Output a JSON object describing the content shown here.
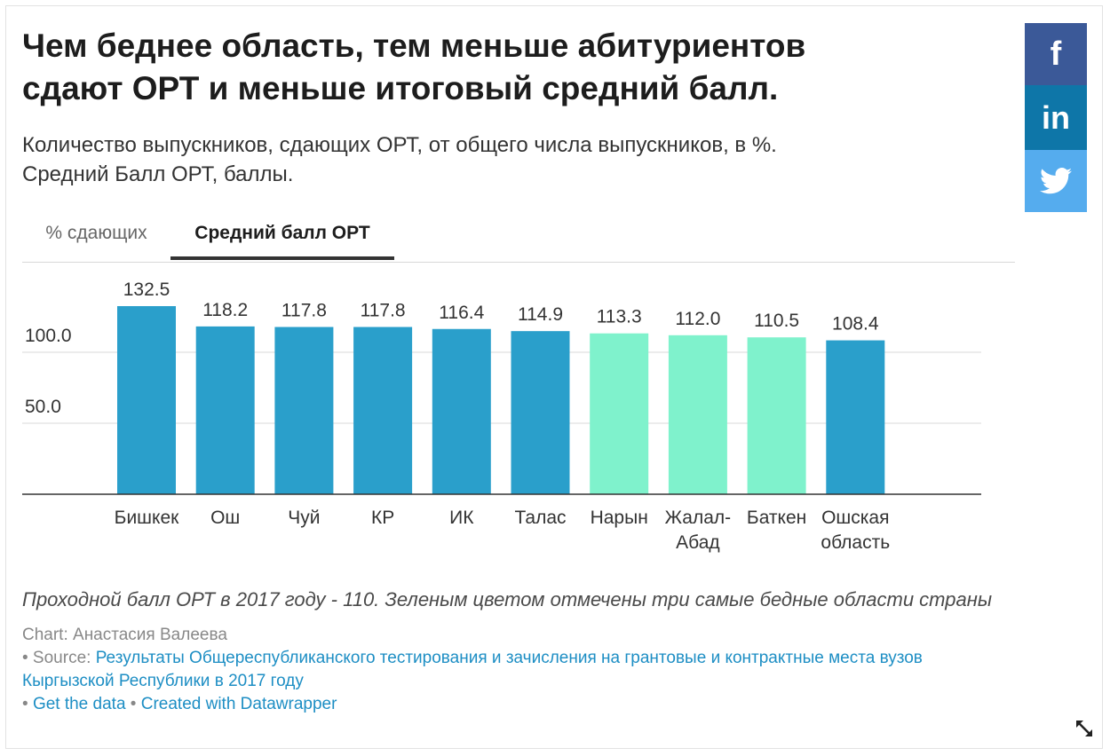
{
  "title_lines": [
    "Чем беднее область, тем меньше абитуриентов",
    "сдают ОРТ и меньше итоговый средний балл."
  ],
  "subtitle_lines": [
    "Количество выпускников, сдающих ОРТ, от общего числа выпускников, в %.",
    "Средний Балл ОРТ, баллы."
  ],
  "tabs": [
    {
      "label": "% сдающих",
      "active": false
    },
    {
      "label": "Средний балл ОРТ",
      "active": true
    }
  ],
  "social": {
    "icons": [
      "facebook-icon",
      "linkedin-icon",
      "twitter-icon"
    ],
    "fb_glyph": "f",
    "li_glyph": "in"
  },
  "chart_data": {
    "type": "bar",
    "categories": [
      [
        "Бишкек"
      ],
      [
        "Ош"
      ],
      [
        "Чуй"
      ],
      [
        "КР"
      ],
      [
        "ИК"
      ],
      [
        "Талас"
      ],
      [
        "Нарын"
      ],
      [
        "Жалал-",
        "Абад"
      ],
      [
        "Баткен"
      ],
      [
        "Ошская",
        "область"
      ]
    ],
    "values": [
      132.5,
      118.2,
      117.8,
      117.8,
      116.4,
      114.9,
      113.3,
      112.0,
      110.5,
      108.4
    ],
    "value_labels": [
      "132.5",
      "118.2",
      "117.8",
      "117.8",
      "116.4",
      "114.9",
      "113.3",
      "112.0",
      "110.5",
      "108.4"
    ],
    "highlight": [
      false,
      false,
      false,
      false,
      false,
      false,
      true,
      true,
      true,
      false
    ],
    "colors": {
      "default": "#2a9fcb",
      "highlight": "#7ff2cc"
    },
    "y_ticks": [
      {
        "value": 100,
        "label": "100.0"
      },
      {
        "value": 50,
        "label": "50.0"
      }
    ],
    "ylim": [
      0,
      140
    ],
    "grid": true
  },
  "note": "Проходной балл ОРТ в 2017 году - 110. Зеленым цветом отмечены три самые бедные области страны",
  "credit": {
    "chart_line": "Chart: Анастасия Валеева",
    "source_prefix": "• Source: ",
    "source_link": "Результаты Общереспубликанского тестирования и зачисления на грантовые и контрактные места вузов",
    "source_link_2": "Кыргызской Республики в 2017 году",
    "bullet": "• ",
    "get_data": "Get the data",
    "sep": " • ",
    "created_with": "Created with Datawrapper"
  }
}
